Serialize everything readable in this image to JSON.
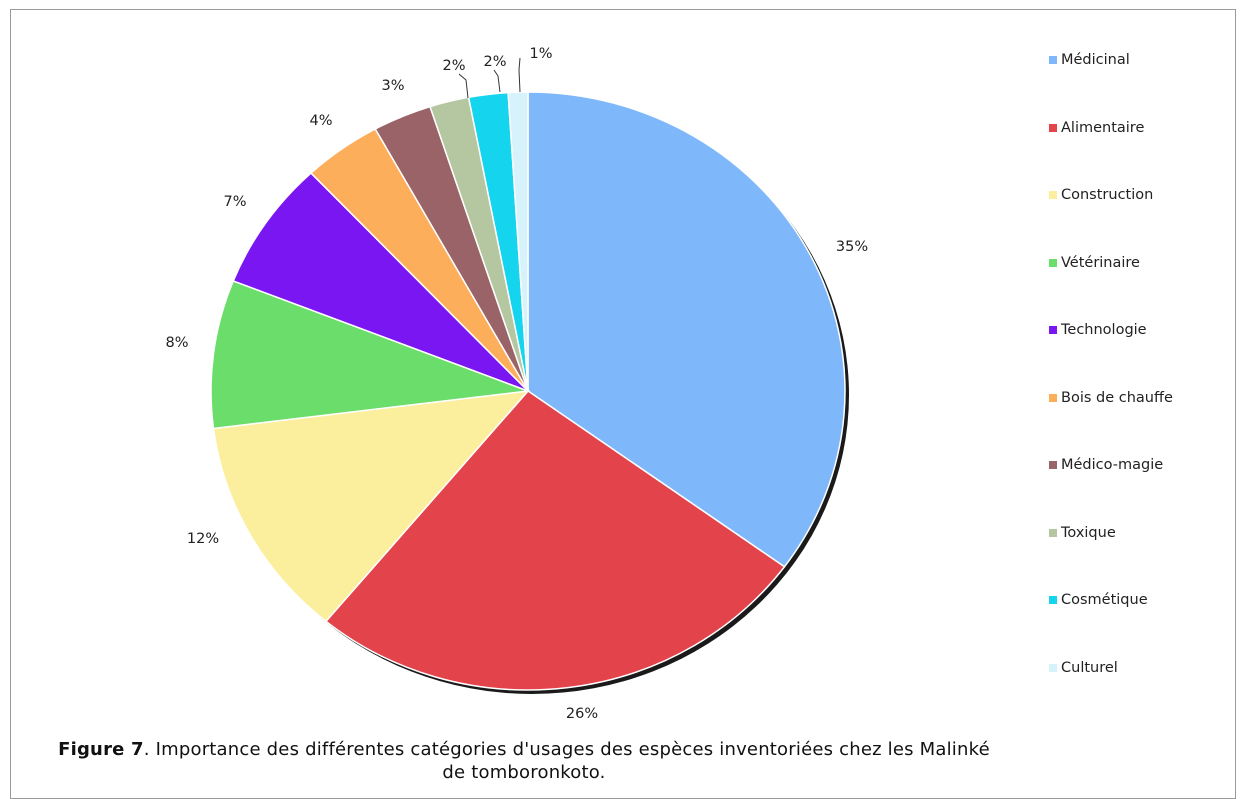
{
  "chart_data": {
    "type": "pie",
    "categories": [
      "Médicinal",
      "Alimentaire",
      "Construction",
      "Vétérinaire",
      "Technologie",
      "Bois de chauffe",
      "Médico-magie",
      "Toxique",
      "Cosmétique",
      "Culturel"
    ],
    "values": [
      35,
      26,
      12,
      8,
      7,
      4,
      3,
      2,
      2,
      1
    ],
    "data_labels": [
      "35%",
      "26%",
      "12%",
      "8%",
      "7%",
      "4%",
      "3%",
      "2%",
      "2%",
      "1%"
    ],
    "colors": [
      "#7eb8fb",
      "#e3434a",
      "#fbef9e",
      "#6bdd6b",
      "#7a16f2",
      "#fdae5b",
      "#9a6367",
      "#b5c7a1",
      "#14d4ee",
      "#d6f2fb"
    ],
    "legend_position": "right",
    "start_angle_deg": 0,
    "direction": "clockwise"
  },
  "caption": {
    "label": "Figure 7",
    "text": ". Importance des différentes catégories d'usages des espèces inventoriées chez les Malinké de tomboronkoto."
  }
}
